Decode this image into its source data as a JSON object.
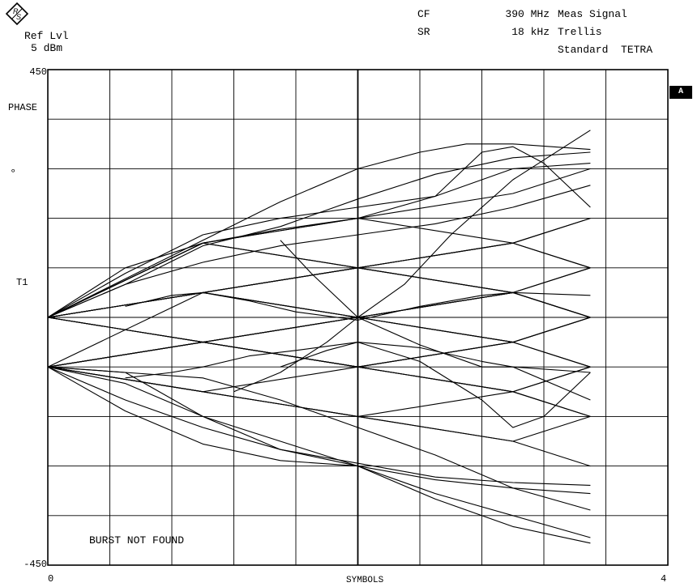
{
  "header": {
    "ref_label": "Ref Lvl",
    "ref_value": "5 dBm",
    "cf_label": "CF",
    "cf_value": "390 MHz",
    "sr_label": "SR",
    "sr_value": "18 kHz",
    "meas_label": "Meas Signal",
    "meas_mode": "Trellis",
    "standard": "Standard  TETRA"
  },
  "trace_marker": "A",
  "y_labels": {
    "top": "450",
    "bottom": "-450",
    "unit_name": "PHASE",
    "unit": "°",
    "trigger": "T1"
  },
  "x_labels": {
    "start": "0",
    "end": "4",
    "title": "SYMBOLS"
  },
  "status_message": "BURST NOT FOUND",
  "chart_data": {
    "type": "line",
    "title": "",
    "xlabel": "SYMBOLS",
    "ylabel": "PHASE °",
    "xlim": [
      0,
      4
    ],
    "ylim": [
      -450,
      450
    ],
    "grid": true,
    "grid_divisions": {
      "x": 10,
      "y": 10
    },
    "trace_color": "#000000",
    "series": [
      {
        "x": [
          0,
          1,
          2,
          3,
          3.5
        ],
        "y": [
          0,
          45,
          90,
          135,
          90
        ]
      },
      {
        "x": [
          0,
          1,
          2,
          3,
          3.5
        ],
        "y": [
          0,
          45,
          90,
          45,
          0
        ]
      },
      {
        "x": [
          0,
          1,
          2,
          3,
          3.5
        ],
        "y": [
          0,
          45,
          0,
          45,
          90
        ]
      },
      {
        "x": [
          0,
          1,
          2,
          3,
          3.5
        ],
        "y": [
          0,
          45,
          0,
          -45,
          0
        ]
      },
      {
        "x": [
          0,
          1,
          2,
          3,
          3.5
        ],
        "y": [
          0,
          -45,
          0,
          45,
          0
        ]
      },
      {
        "x": [
          0,
          1,
          2,
          3,
          3.5
        ],
        "y": [
          0,
          -45,
          -90,
          -45,
          -90
        ]
      },
      {
        "x": [
          0,
          1,
          2,
          3,
          3.5
        ],
        "y": [
          0,
          135,
          90,
          135,
          180
        ]
      },
      {
        "x": [
          0,
          1,
          2,
          3,
          3.5
        ],
        "y": [
          0,
          135,
          180,
          225,
          270
        ]
      },
      {
        "x": [
          0,
          1,
          2,
          3,
          3.5
        ],
        "y": [
          0,
          135,
          180,
          135,
          90
        ]
      },
      {
        "x": [
          0,
          1,
          2,
          3,
          3.5
        ],
        "y": [
          0,
          -45,
          -90,
          -135,
          -180
        ]
      },
      {
        "x": [
          0,
          1,
          2,
          3,
          3.5
        ],
        "y": [
          0,
          -45,
          0,
          -45,
          -90
        ]
      },
      {
        "x": [
          0,
          1,
          2,
          3,
          3.5
        ],
        "y": [
          0,
          45,
          90,
          135,
          180
        ]
      },
      {
        "x": [
          0,
          1,
          2,
          3,
          3.5
        ],
        "y": [
          -90,
          -45,
          0,
          45,
          90
        ]
      },
      {
        "x": [
          0,
          1,
          2,
          3,
          3.5
        ],
        "y": [
          -90,
          -135,
          -180,
          -225,
          -180
        ]
      },
      {
        "x": [
          0,
          1,
          2,
          3,
          3.5
        ],
        "y": [
          -90,
          -135,
          -90,
          -45,
          0
        ]
      },
      {
        "x": [
          0,
          1,
          2,
          3,
          3.5
        ],
        "y": [
          -90,
          -45,
          -90,
          -135,
          -90
        ]
      },
      {
        "x": [
          0,
          1,
          2,
          3,
          3.5
        ],
        "y": [
          -90,
          -45,
          0,
          -45,
          0
        ]
      },
      {
        "x": [
          0,
          1,
          2,
          3,
          3.5
        ],
        "y": [
          -90,
          -135,
          -180,
          -135,
          -90
        ]
      },
      {
        "x": [
          0,
          1,
          2,
          3,
          3.5
        ],
        "y": [
          -90,
          45,
          90,
          45,
          0
        ]
      },
      {
        "x": [
          0,
          1,
          2,
          3,
          3.5
        ],
        "y": [
          -90,
          -45,
          -90,
          -45,
          0
        ]
      },
      {
        "x": [
          0,
          1,
          2,
          3,
          3.5
        ],
        "y": [
          -90,
          -135,
          -180,
          -225,
          -270
        ]
      },
      {
        "x": [
          0,
          1,
          2,
          3,
          3.5
        ],
        "y": [
          0,
          45,
          0,
          45,
          0
        ]
      },
      {
        "x": [
          0,
          1,
          2,
          3,
          3.5
        ],
        "y": [
          0,
          135,
          90,
          45,
          0
        ]
      },
      {
        "x": [
          0,
          1,
          2,
          3,
          3.5
        ],
        "y": [
          -90,
          -45,
          -90,
          -135,
          -180
        ]
      },
      {
        "x": [
          0,
          0.5,
          1,
          1.5,
          2,
          2.5,
          3,
          3.5
        ],
        "y": [
          0,
          90,
          135,
          160,
          180,
          220,
          270,
          280
        ]
      },
      {
        "x": [
          0,
          0.5,
          1,
          1.5,
          2,
          2.5,
          3,
          3.5
        ],
        "y": [
          0,
          60,
          130,
          165,
          215,
          260,
          290,
          300
        ]
      },
      {
        "x": [
          0,
          0.5,
          1,
          1.5,
          2,
          2.4,
          2.7,
          3,
          3.5
        ],
        "y": [
          0,
          70,
          140,
          210,
          270,
          300,
          315,
          315,
          305
        ]
      },
      {
        "x": [
          0,
          0.5,
          1,
          1.5,
          2,
          2.5,
          2.8,
          3,
          3.2,
          3.5
        ],
        "y": [
          0,
          80,
          150,
          180,
          200,
          220,
          300,
          310,
          280,
          200
        ]
      },
      {
        "x": [
          0,
          0.5,
          1,
          1.5,
          2,
          2.5,
          3,
          3.5
        ],
        "y": [
          -90,
          -170,
          -230,
          -260,
          -270,
          -295,
          -310,
          -320
        ]
      },
      {
        "x": [
          0,
          0.5,
          1,
          1.5,
          2,
          2.5,
          3,
          3.5
        ],
        "y": [
          -90,
          -150,
          -200,
          -240,
          -265,
          -290,
          -300,
          -305
        ]
      },
      {
        "x": [
          0,
          0.5,
          1,
          1.5,
          2,
          2.5,
          3,
          3.5
        ],
        "y": [
          -90,
          -120,
          -180,
          -225,
          -270,
          -320,
          -360,
          -400
        ]
      },
      {
        "x": [
          0,
          0.5,
          1,
          1.5,
          2,
          2.5,
          3,
          3.5
        ],
        "y": [
          -90,
          -100,
          -180,
          -240,
          -270,
          -330,
          -380,
          -410
        ]
      },
      {
        "x": [
          0,
          0.5,
          1,
          1.5,
          2,
          2.5,
          3,
          3.5
        ],
        "y": [
          0,
          60,
          100,
          130,
          150,
          170,
          200,
          240
        ]
      },
      {
        "x": [
          0,
          0.5,
          1,
          1.5,
          2,
          2.5,
          3,
          3.5
        ],
        "y": [
          -90,
          -100,
          -110,
          -150,
          -200,
          -250,
          -310,
          -350
        ]
      },
      {
        "x": [
          1.2,
          1.5,
          1.8,
          2.0,
          2.3,
          2.6,
          3.0,
          3.5
        ],
        "y": [
          -135,
          -100,
          -45,
          0,
          60,
          150,
          250,
          340
        ]
      },
      {
        "x": [
          1.5,
          1.8,
          2.0,
          2.4,
          2.8,
          3.0,
          3.2,
          3.5
        ],
        "y": [
          -90,
          -60,
          -45,
          -80,
          -150,
          -200,
          -180,
          -100
        ]
      },
      {
        "x": [
          1.5,
          1.7,
          2.0,
          2.4,
          2.8,
          3.0,
          3.5
        ],
        "y": [
          140,
          80,
          0,
          -50,
          -90,
          -90,
          -150
        ]
      },
      {
        "x": [
          0.5,
          0.8,
          1.0,
          1.3,
          1.6,
          2.0,
          2.4,
          2.8,
          3.0,
          3.5
        ],
        "y": [
          20,
          40,
          45,
          30,
          10,
          -5,
          20,
          40,
          45,
          40
        ]
      },
      {
        "x": [
          0.5,
          0.8,
          1.0,
          1.3,
          1.6,
          2.0,
          2.4,
          2.8,
          3.0,
          3.5
        ],
        "y": [
          -110,
          -100,
          -90,
          -70,
          -60,
          -45,
          -55,
          -80,
          -90,
          -100
        ]
      }
    ]
  }
}
